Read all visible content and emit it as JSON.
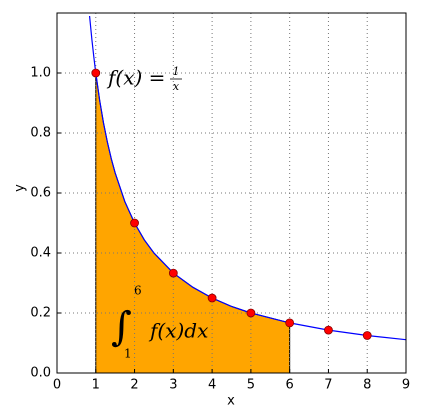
{
  "chart_data": {
    "type": "line",
    "x_label": "x",
    "y_label": "y",
    "xlim": [
      0,
      9
    ],
    "ylim": [
      0,
      1.2
    ],
    "xticks": [
      0,
      1,
      2,
      3,
      4,
      5,
      6,
      7,
      8,
      9
    ],
    "yticks": [
      {
        "value": 0,
        "label": "0.0"
      },
      0.2,
      0.4,
      0.6,
      0.8,
      {
        "value": 1,
        "label": "1.0"
      }
    ],
    "grid": true,
    "series": [
      {
        "name": "f(x) =",
        "color": "#0000ff",
        "kind": "curve",
        "x": [
          0.84,
          0.9,
          0.95,
          1,
          1.1,
          1.2,
          1.3,
          1.4,
          1.5,
          1.75,
          2,
          2.25,
          2.5,
          3,
          3.5,
          4,
          4.5,
          5,
          6,
          7,
          8,
          9
        ],
        "values": [
          1.19,
          1.111,
          1.053,
          1,
          0.909,
          0.833,
          0.769,
          0.714,
          0.667,
          0.571,
          0.5,
          0.444,
          0.4,
          0.333,
          0.286,
          0.25,
          0.222,
          0.2,
          0.167,
          0.143,
          0.125,
          0.111
        ]
      },
      {
        "color": "#ff0000",
        "kind": "points",
        "x": [
          1,
          2,
          3,
          4,
          5,
          6,
          7,
          8
        ],
        "values": [
          1,
          0.5,
          0.333,
          0.25,
          0.2,
          0.167,
          0.143,
          0.125
        ]
      }
    ],
    "fraction": {
      "numerator": "1",
      "denominator": "x"
    },
    "integral": {
      "lower": 1,
      "upper": 6,
      "integrand": "f(x)dx",
      "color": "#ffa500"
    }
  }
}
